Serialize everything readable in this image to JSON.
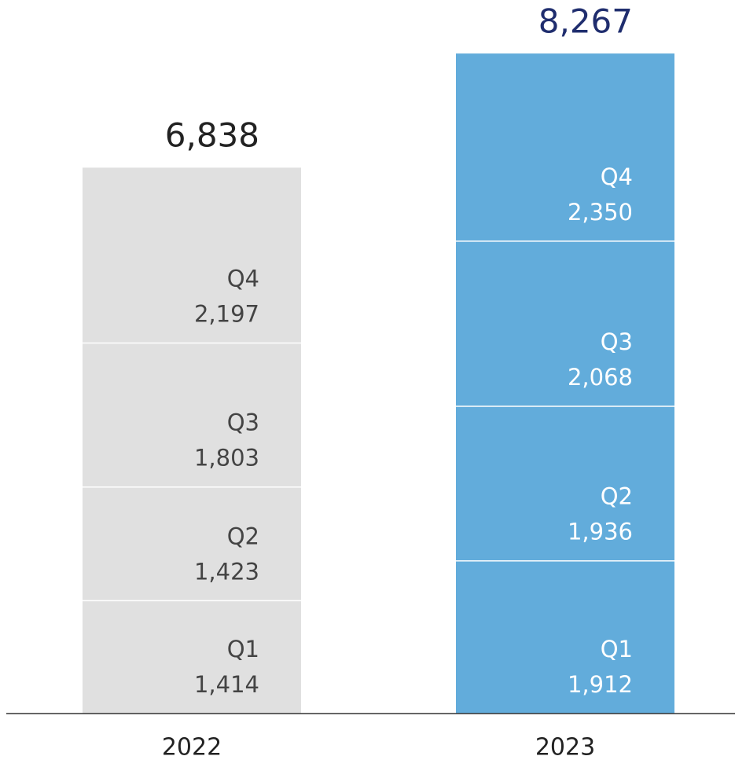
{
  "chart_data": {
    "type": "stacked_bar",
    "categories": [
      "2022",
      "2023"
    ],
    "category_colors": [
      "#e0e0e0",
      "#62acdb"
    ],
    "series": [
      {
        "name": "Q1",
        "values": [
          1414,
          1912
        ],
        "value_labels": [
          "1,414",
          "1,912"
        ]
      },
      {
        "name": "Q2",
        "values": [
          1423,
          1936
        ],
        "value_labels": [
          "1,423",
          "1,936"
        ]
      },
      {
        "name": "Q3",
        "values": [
          1803,
          2068
        ],
        "value_labels": [
          "1,803",
          "2,068"
        ]
      },
      {
        "name": "Q4",
        "values": [
          2197,
          2350
        ],
        "value_labels": [
          "2,197",
          "2,350"
        ]
      }
    ],
    "totals": [
      6838,
      8267
    ],
    "total_labels": [
      "6,838",
      "8,267"
    ],
    "total_colors": [
      "#222222",
      "#1f2d6e"
    ]
  }
}
